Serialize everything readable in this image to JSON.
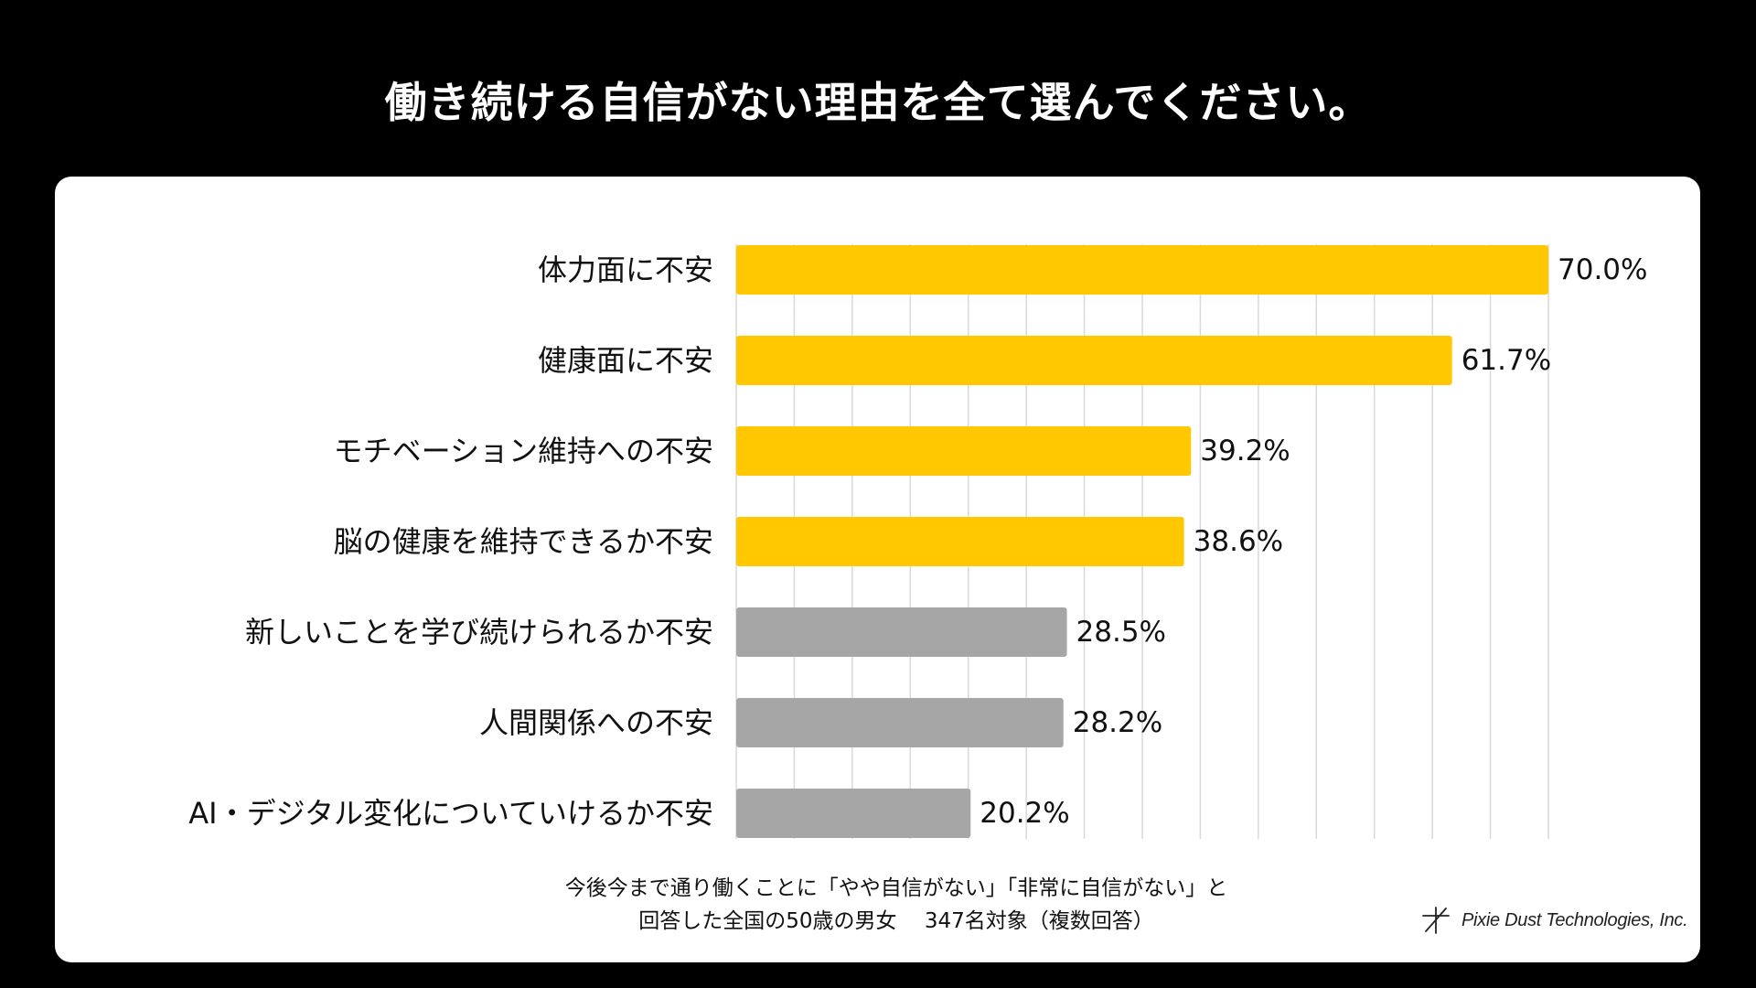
{
  "title": "働き続ける自信がない理由を全て選んでください。",
  "chart_data": {
    "type": "bar",
    "orientation": "horizontal",
    "categories": [
      "体力面に不安",
      "健康面に不安",
      "モチベーション維持への不安",
      "脳の健康を維持できるか不安",
      "新しいことを学び続けられるか不安",
      "人間関係への不安",
      "AI・デジタル変化についていけるか不安"
    ],
    "values": [
      70.0,
      61.7,
      39.2,
      38.6,
      28.5,
      28.2,
      20.2
    ],
    "value_labels": [
      "70.0%",
      "61.7%",
      "39.2%",
      "38.6%",
      "28.5%",
      "28.2%",
      "20.2%"
    ],
    "bar_colors": [
      "#FFC800",
      "#FFC800",
      "#FFC800",
      "#FFC800",
      "#A6A6A6",
      "#A6A6A6",
      "#A6A6A6"
    ],
    "xlim": [
      0,
      70
    ],
    "grid": true,
    "legend": "none"
  },
  "note": {
    "line1": "今後今まで通り働くことに「やや自信がない」「非常に自信がない」と",
    "line2": "回答した全国の50歳の男女　 347名対象（複数回答）"
  },
  "brand": {
    "name": "Pixie Dust Technologies, Inc.",
    "icon": "asterisk-logo-icon"
  },
  "colors": {
    "background": "#000000",
    "card": "#FFFFFF",
    "highlight_bar": "#FFC800",
    "other_bar": "#A6A6A6",
    "grid": "#D9D9D9"
  }
}
